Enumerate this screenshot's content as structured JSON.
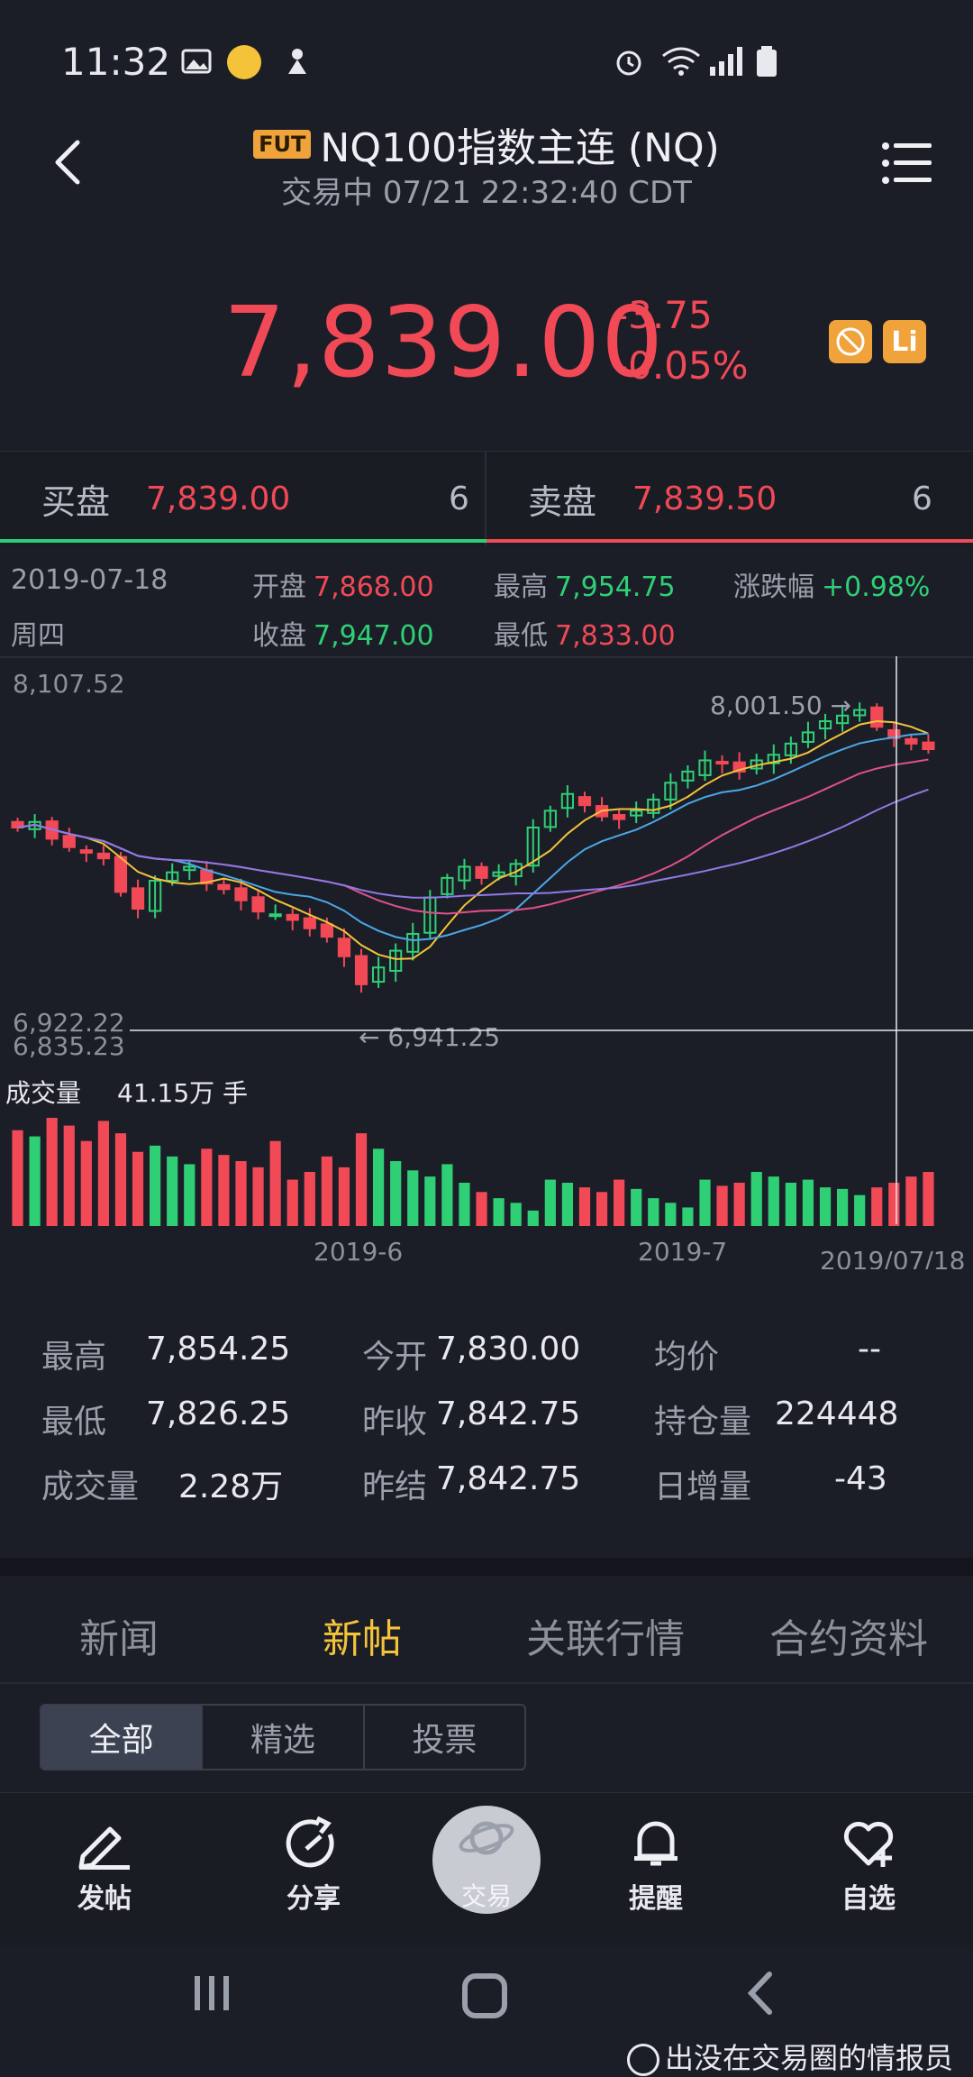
{
  "status_bar": {
    "time": "11:32"
  },
  "header": {
    "badge": "FUT",
    "title": "NQ100指数主连 (NQ)",
    "subtitle": "交易中 07/21 22:32:40 CDT"
  },
  "quote": {
    "price": "7,839.00",
    "change": "-3.75",
    "change_pct": "-0.05%",
    "tag_lv": "Li"
  },
  "bid_ask": {
    "bid_label": "买盘",
    "bid_price": "7,839.00",
    "bid_qty": "6",
    "ask_label": "卖盘",
    "ask_price": "7,839.50",
    "ask_qty": "6"
  },
  "day_info": {
    "date": "2019-07-18",
    "weekday": "周四",
    "open_label": "开盘",
    "open": "7,868.00",
    "close_label": "收盘",
    "close": "7,947.00",
    "high_label": "最高",
    "high": "7,954.75",
    "low_label": "最低",
    "low": "7,833.00",
    "chg_label": "涨跌幅",
    "chg": "+0.98%"
  },
  "chart_data": {
    "type": "candlestick",
    "y_top_label": "8,107.52",
    "y_bottom_label": "6,922.22",
    "y_bottom_label2": "6,835.23",
    "max_annotation": "8,001.50 →",
    "min_annotation": "← 6,941.25",
    "ylim": [
      6835.23,
      8107.52
    ],
    "volume_label": "成交量",
    "volume_value": "41.15万 手",
    "x_ticks": [
      "2019-6",
      "2019-7"
    ],
    "crosshair_date": "2019/07/18",
    "closes": [
      7560,
      7580,
      7520,
      7490,
      7470,
      7450,
      7330,
      7270,
      7370,
      7400,
      7420,
      7360,
      7340,
      7300,
      7260,
      7250,
      7230,
      7200,
      7170,
      7100,
      7000,
      7060,
      7120,
      7180,
      7310,
      7380,
      7420,
      7380,
      7400,
      7430,
      7560,
      7620,
      7680,
      7640,
      7600,
      7590,
      7620,
      7660,
      7720,
      7760,
      7800,
      7790,
      7760,
      7800,
      7820,
      7860,
      7900,
      7940,
      7960,
      7980,
      7920,
      7880,
      7860,
      7840
    ],
    "volumes": [
      62,
      58,
      70,
      65,
      55,
      68,
      60,
      48,
      52,
      45,
      40,
      50,
      46,
      42,
      38,
      55,
      30,
      35,
      45,
      38,
      60,
      50,
      42,
      36,
      32,
      40,
      28,
      22,
      18,
      15,
      10,
      30,
      28,
      25,
      22,
      30,
      24,
      18,
      15,
      12,
      30,
      26,
      28,
      35,
      32,
      28,
      30,
      25,
      24,
      20,
      25,
      28,
      32,
      35
    ]
  },
  "stats": {
    "high_label": "最高",
    "high": "7,854.25",
    "open_label": "今开",
    "open": "7,830.00",
    "avg_label": "均价",
    "avg": "--",
    "low_label": "最低",
    "low": "7,826.25",
    "prev_close_label": "昨收",
    "prev_close": "7,842.75",
    "oi_label": "持仓量",
    "oi": "224448",
    "vol_label": "成交量",
    "vol": "2.28万",
    "prev_settle_label": "昨结",
    "prev_settle": "7,842.75",
    "oi_chg_label": "日增量",
    "oi_chg": "-43"
  },
  "tabs": [
    "新闻",
    "新帖",
    "关联行情",
    "合约资料"
  ],
  "segments": [
    "全部",
    "精选",
    "投票"
  ],
  "bottom_bar": {
    "post": "发帖",
    "share": "分享",
    "trade": "交易",
    "alert": "提醒",
    "watch": "自选"
  },
  "watermark": "出没在交易圈的情报员"
}
